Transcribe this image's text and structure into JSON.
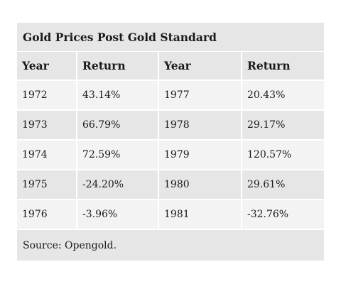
{
  "table": {
    "title": "Gold Prices Post Gold Standard",
    "headers": [
      "Year",
      "Return",
      "Year",
      "Return"
    ],
    "rows": [
      [
        "1972",
        "43.14%",
        "1977",
        "20.43%"
      ],
      [
        "1973",
        "66.79%",
        "1978",
        "29.17%"
      ],
      [
        "1974",
        "72.59%",
        "1979",
        "120.57%"
      ],
      [
        "1975",
        "-24.20%",
        "1980",
        "29.61%"
      ],
      [
        "1976",
        "-3.96%",
        "1981",
        "-32.76%"
      ]
    ],
    "source": "Source: Opengold."
  }
}
